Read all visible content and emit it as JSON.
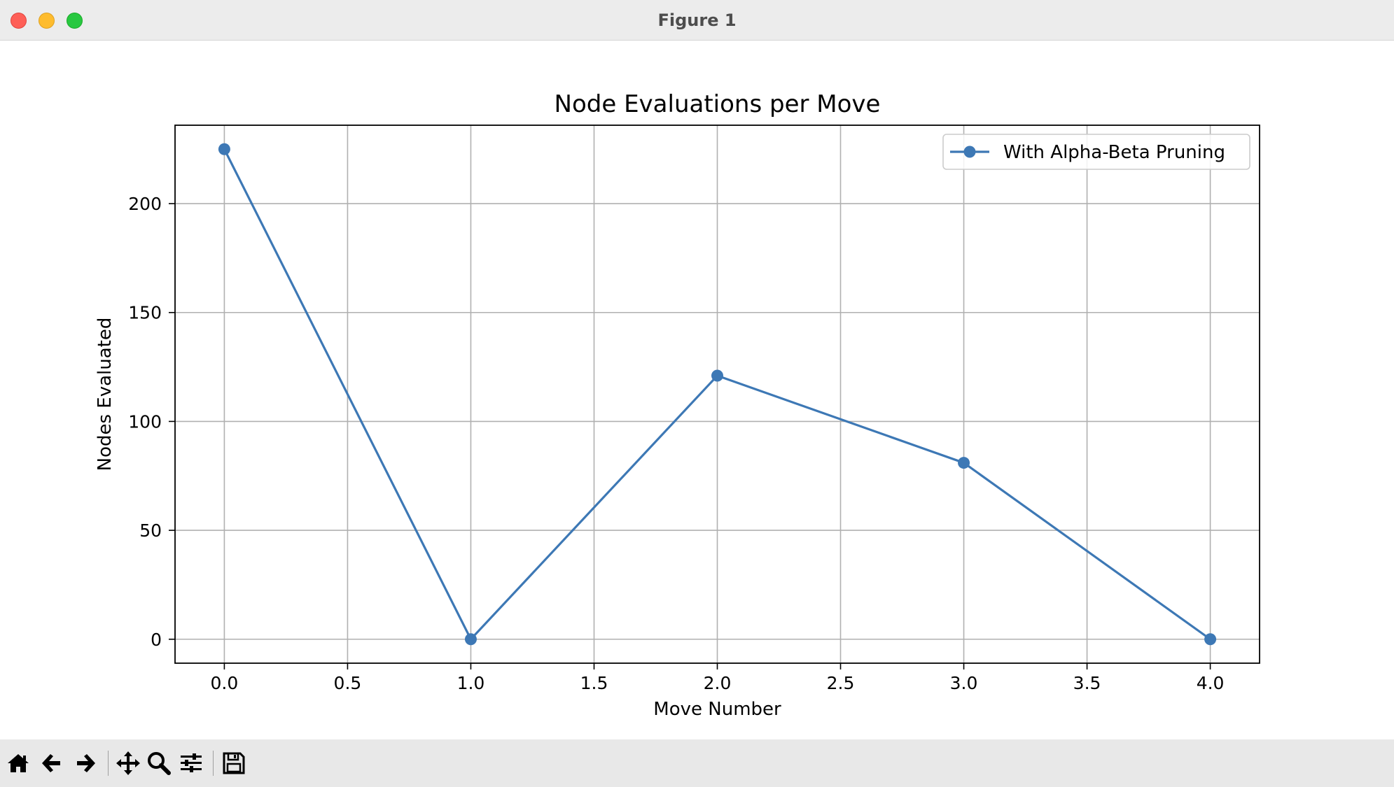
{
  "window": {
    "title": "Figure 1"
  },
  "toolbar": {
    "buttons": [
      {
        "icon": "home-icon"
      },
      {
        "icon": "back-arrow-icon"
      },
      {
        "icon": "forward-arrow-icon"
      },
      {
        "icon": "pan-icon"
      },
      {
        "icon": "zoom-icon"
      },
      {
        "icon": "configure-subplots-icon"
      },
      {
        "icon": "save-icon"
      }
    ]
  },
  "chart_data": {
    "type": "line",
    "title": "Node Evaluations per Move",
    "xlabel": "Move Number",
    "ylabel": "Nodes Evaluated",
    "x": [
      0,
      1,
      2,
      3,
      4
    ],
    "series": [
      {
        "name": "With Alpha-Beta Pruning",
        "values": [
          225,
          0,
          121,
          81,
          0
        ],
        "color": "#3d78b5",
        "marker": "circle"
      }
    ],
    "xlim": [
      -0.2,
      4.2
    ],
    "ylim": [
      -11,
      236
    ],
    "xticks": [
      "0.0",
      "0.5",
      "1.0",
      "1.5",
      "2.0",
      "2.5",
      "3.0",
      "3.5",
      "4.0"
    ],
    "yticks": [
      "0",
      "50",
      "100",
      "150",
      "200"
    ],
    "grid": true,
    "legend_position": "top-right"
  }
}
